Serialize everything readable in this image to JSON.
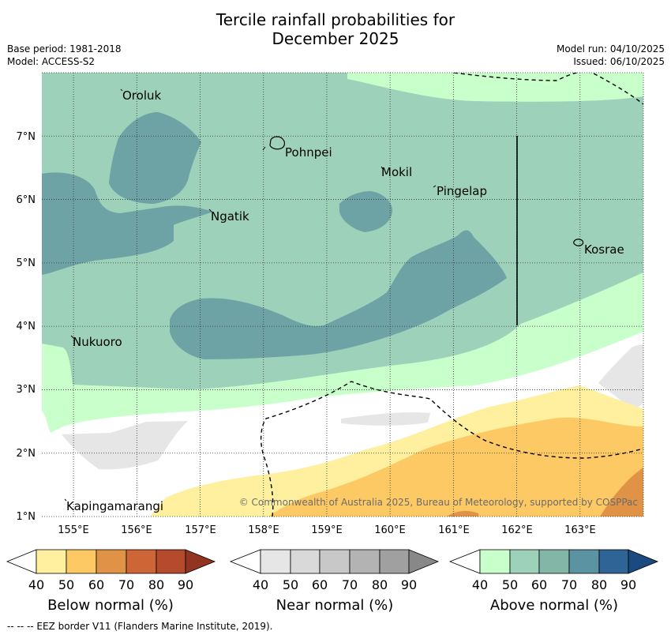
{
  "title": {
    "line1": "Tercile rainfall probabilities for",
    "line2": "December 2025"
  },
  "meta": {
    "base_period": "Base period: 1981-2018",
    "model": "Model: ACCESS-S2",
    "model_run": "Model run: 04/10/2025",
    "issued": "Issued: 06/10/2025"
  },
  "map": {
    "extent": {
      "lon_min": 154.5,
      "lon_max": 164.0,
      "lat_min": 1.0,
      "lat_max": 8.0
    },
    "lon_ticks": [
      "155°E",
      "156°E",
      "157°E",
      "158°E",
      "159°E",
      "160°E",
      "161°E",
      "162°E",
      "163°E"
    ],
    "lat_ticks": [
      "1°N",
      "2°N",
      "3°N",
      "4°N",
      "5°N",
      "6°N",
      "7°N"
    ],
    "places": [
      {
        "name": "Oroluk"
      },
      {
        "name": "Pohnpei"
      },
      {
        "name": "Mokil"
      },
      {
        "name": "Pingelap"
      },
      {
        "name": "Ngatik"
      },
      {
        "name": "Kosrae"
      },
      {
        "name": "Nukuoro"
      },
      {
        "name": "Kapingamarangi"
      }
    ],
    "copyright": "© Commonwealth of Australia 2025, Bureau of Meteorology, supported by COSPPac"
  },
  "colorbars": [
    {
      "title": "Below normal (%)",
      "labels": [
        "40",
        "50",
        "60",
        "70",
        "80",
        "90"
      ],
      "colors": [
        "#fff0a0",
        "#fdc964",
        "#e09246",
        "#cd6536",
        "#b54a2c",
        "#923420"
      ]
    },
    {
      "title": "Near normal (%)",
      "labels": [
        "40",
        "50",
        "60",
        "70",
        "80",
        "90"
      ],
      "colors": [
        "#e6e6e6",
        "#d9d9d9",
        "#c8c8c8",
        "#b3b3b3",
        "#a0a0a0",
        "#888888"
      ]
    },
    {
      "title": "Above normal (%)",
      "labels": [
        "40",
        "50",
        "60",
        "70",
        "80",
        "90"
      ],
      "colors": [
        "#c9ffcb",
        "#9ed1b9",
        "#83b6a7",
        "#5b93a2",
        "#2f6496",
        "#1a4a80"
      ]
    }
  ],
  "footnote": "--  --  -- EEZ border V11 (Flanders Marine Institute, 2019)."
}
